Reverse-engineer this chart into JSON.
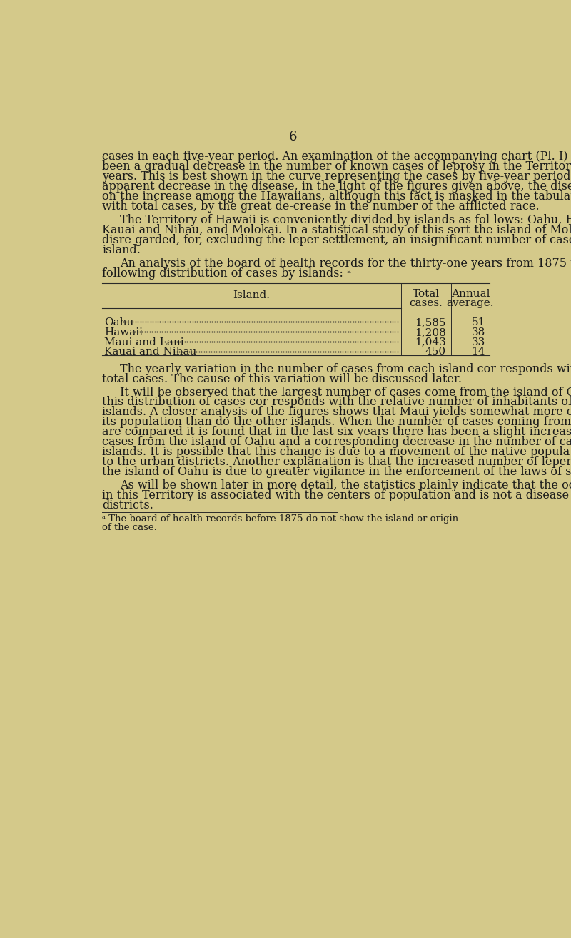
{
  "background_color": "#d4c98a",
  "page_number": "6",
  "page_number_fontsize": 13,
  "main_text_color": "#1a1a1a",
  "main_fontsize": 11.5,
  "footnote_fontsize": 9.5,
  "table_header_fontsize": 11,
  "table_data_fontsize": 11,
  "table": {
    "rows": [
      [
        "Oahu",
        "1,585",
        "51"
      ],
      [
        "Hawaii",
        "1,208",
        "38"
      ],
      [
        "Maui and Lani",
        "1,043",
        "33"
      ],
      [
        "Kauai and Nihau",
        "450",
        "14"
      ]
    ]
  }
}
